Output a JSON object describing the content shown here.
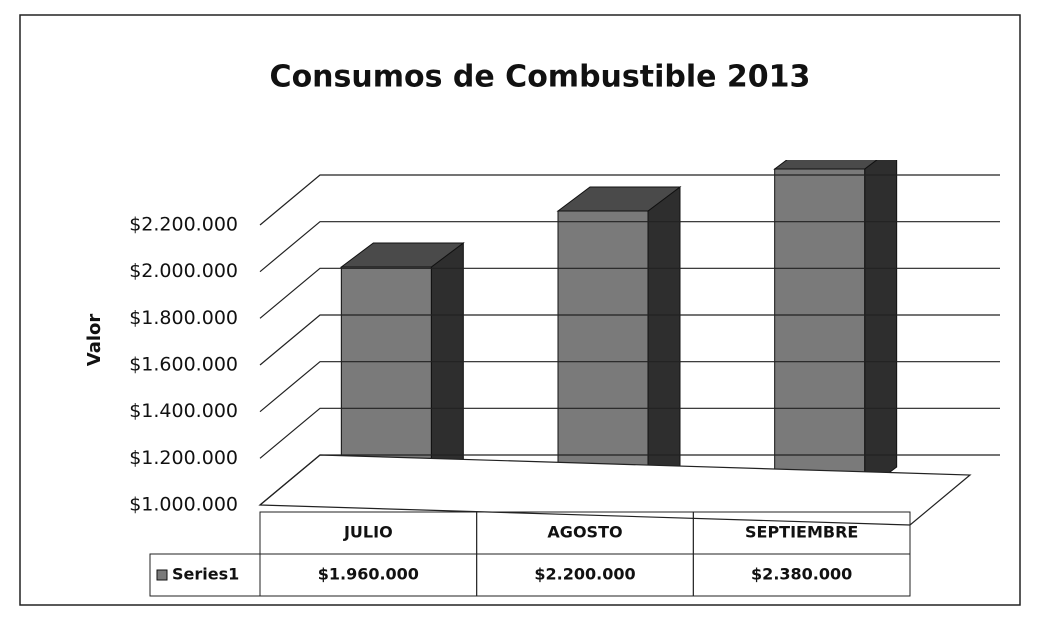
{
  "chart_data": {
    "type": "bar3d",
    "title": "Consumos de Combustible 2013",
    "y_label": "Valor",
    "categories": [
      "JULIO",
      "AGOSTO",
      "SEPTIEMBRE"
    ],
    "series": [
      {
        "name": "Series1",
        "color": "#7a7a7a",
        "values": [
          1960000,
          2200000,
          2380000
        ],
        "value_labels": [
          "$1.960.000",
          "$2.200.000",
          "$2.380.000"
        ]
      }
    ],
    "ylim": [
      1000000,
      2200000
    ],
    "yticks": [
      {
        "value": 1000000,
        "label": "$1.000.000"
      },
      {
        "value": 1200000,
        "label": "$1.200.000"
      },
      {
        "value": 1400000,
        "label": "$1.400.000"
      },
      {
        "value": 1600000,
        "label": "$1.600.000"
      },
      {
        "value": 1800000,
        "label": "$1.800.000"
      },
      {
        "value": 2000000,
        "label": "$2.000.000"
      },
      {
        "value": 2200000,
        "label": "$2.200.000"
      }
    ],
    "grid": true,
    "data_table": true
  }
}
